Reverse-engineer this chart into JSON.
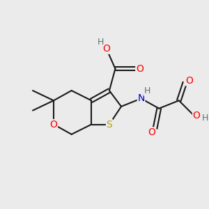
{
  "bg_color": "#ebebeb",
  "bond_color": "#1a1a1a",
  "bond_width": 1.5,
  "atom_colors": {
    "S": "#b8a000",
    "O": "#ff0000",
    "N": "#0000cc",
    "H": "#607070",
    "C": "#1a1a1a"
  }
}
